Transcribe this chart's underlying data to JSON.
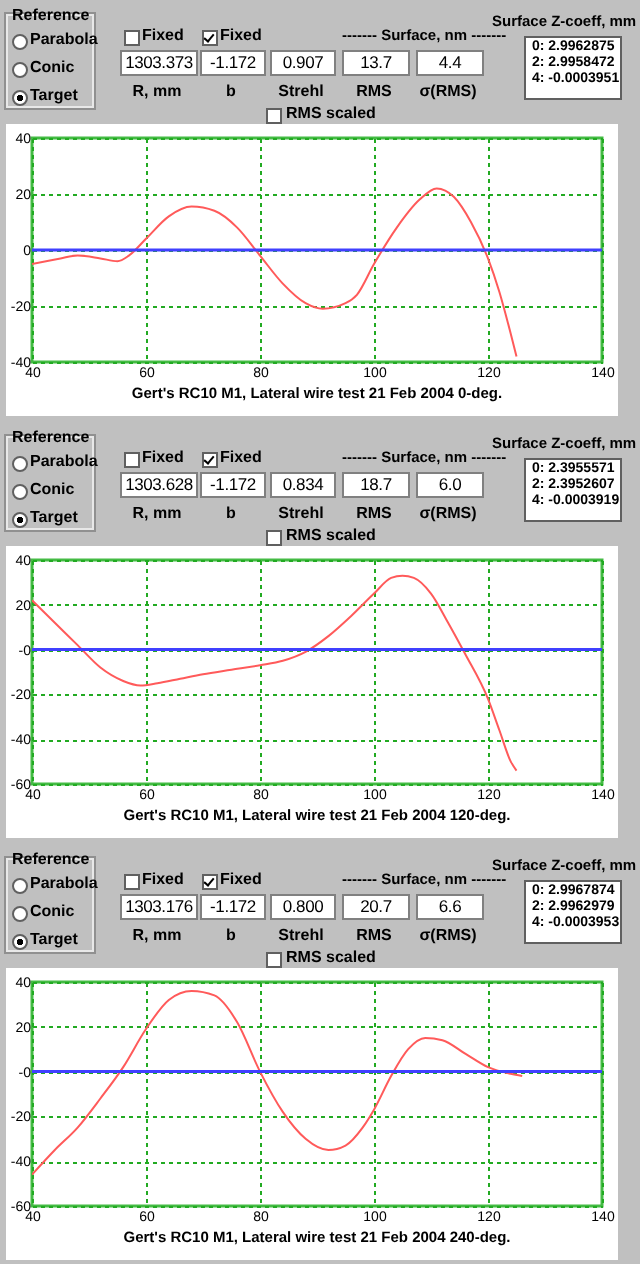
{
  "chart_data": [
    {
      "type": "other",
      "annotations": [
        "Reference",
        "Parabola",
        "Conic",
        "Target",
        "Fixed",
        "Fixed",
        "1303.373",
        "-1.172",
        "0.907",
        "13.7",
        "4.4",
        "R, mm",
        "b",
        "Strehl",
        "RMS",
        "σ(RMS)",
        "------- Surface, nm -------",
        "RMS scaled",
        "Surface Z-coeff, mm",
        "0:  2.9962875",
        "2:  2.9958472",
        "4:  -0.0003951"
      ]
    },
    {
      "type": "line",
      "title": "Gert's RC10 M1, Lateral wire test 21 Feb 2004 0-deg.",
      "xlim": [
        40,
        140
      ],
      "xticks": [
        40,
        60,
        80,
        100,
        120,
        140
      ],
      "ylim": [
        -40,
        40
      ],
      "yticks": [
        -40,
        -20,
        0,
        20,
        40
      ],
      "grid": true,
      "x": [
        40,
        45,
        48,
        52,
        55,
        57,
        60,
        64,
        68,
        72,
        76,
        80,
        84,
        88,
        91,
        95,
        97,
        100,
        104,
        108,
        111,
        114,
        117,
        120,
        122,
        124,
        125
      ],
      "series": [
        {
          "color": "#ff5a5a",
          "values": [
            -5,
            -3,
            -2,
            -3,
            -4,
            -2,
            4,
            12,
            15.5,
            14,
            8,
            -2,
            -12,
            -19,
            -21,
            -19,
            -16,
            -5,
            8,
            18,
            22,
            19,
            10,
            -3,
            -15,
            -30,
            -38
          ]
        }
      ],
      "ref_lines": [
        {
          "axis": "y",
          "value": 0,
          "color": "#4040ff"
        }
      ]
    },
    {
      "type": "other",
      "annotations": [
        "Reference",
        "Parabola",
        "Conic",
        "Target",
        "Fixed",
        "Fixed",
        "1303.628",
        "-1.172",
        "0.834",
        "18.7",
        "6.0",
        "R, mm",
        "b",
        "Strehl",
        "RMS",
        "σ(RMS)",
        "------- Surface, nm -------",
        "RMS scaled",
        "Surface Z-coeff, mm",
        "0:  2.3955571",
        "2:  2.3952607",
        "4:  -0.0003919"
      ]
    },
    {
      "type": "line",
      "title": "Gert's RC10 M1, Lateral wire test 21 Feb 2004 120-deg.",
      "xlim": [
        40,
        140
      ],
      "xticks": [
        40,
        60,
        80,
        100,
        120,
        140
      ],
      "ylim": [
        -60,
        40
      ],
      "yticks": [
        -60,
        -40,
        -20,
        {
          "value": 0,
          "label": "-0"
        },
        20,
        40
      ],
      "grid": true,
      "x": [
        40,
        44,
        48,
        52,
        56,
        59,
        62,
        66,
        70,
        75,
        80,
        84,
        88,
        92,
        96,
        100,
        103,
        105,
        107,
        110,
        113,
        116,
        120,
        122,
        124,
        125
      ],
      "series": [
        {
          "color": "#ff5a5a",
          "values": [
            22,
            12,
            2,
            -8,
            -14,
            -16,
            -15,
            -13,
            -11,
            -9,
            -7,
            -5,
            -1,
            6,
            15,
            25,
            32,
            33,
            32,
            25,
            12,
            -2,
            -22,
            -36,
            -50,
            -54
          ]
        }
      ],
      "ref_lines": [
        {
          "axis": "y",
          "value": 0,
          "color": "#4040ff"
        }
      ]
    },
    {
      "type": "other",
      "annotations": [
        "Reference",
        "Parabola",
        "Conic",
        "Target",
        "Fixed",
        "Fixed",
        "1303.176",
        "-1.172",
        "0.800",
        "20.7",
        "6.6",
        "R, mm",
        "b",
        "Strehl",
        "RMS",
        "σ(RMS)",
        "------- Surface, nm -------",
        "RMS scaled",
        "Surface Z-coeff, mm",
        "0:  2.9967874",
        "2:  2.9962979",
        "4:  -0.0003953"
      ]
    },
    {
      "type": "line",
      "title": "Gert's RC10 M1, Lateral wire test 21 Feb 2004 240-deg.",
      "xlim": [
        40,
        140
      ],
      "xticks": [
        40,
        60,
        80,
        100,
        120,
        140
      ],
      "ylim": [
        -60,
        40
      ],
      "yticks": [
        -60,
        -40,
        -20,
        {
          "value": 0,
          "label": "-0"
        },
        20,
        40
      ],
      "grid": true,
      "x": [
        40,
        44,
        48,
        52,
        56,
        60,
        64,
        68,
        72,
        76,
        80,
        84,
        88,
        92,
        95,
        98,
        100,
        103,
        106,
        109,
        112,
        116,
        120,
        124,
        126
      ],
      "series": [
        {
          "color": "#ff5a5a",
          "values": [
            -46,
            -35,
            -25,
            -12,
            2,
            19,
            32,
            36,
            34,
            22,
            0,
            -18,
            -30,
            -35,
            -33,
            -25,
            -17,
            -2,
            10,
            15,
            14,
            8,
            2,
            -1,
            -2
          ]
        }
      ],
      "ref_lines": [
        {
          "axis": "y",
          "value": 0,
          "color": "#4040ff"
        }
      ]
    }
  ]
}
